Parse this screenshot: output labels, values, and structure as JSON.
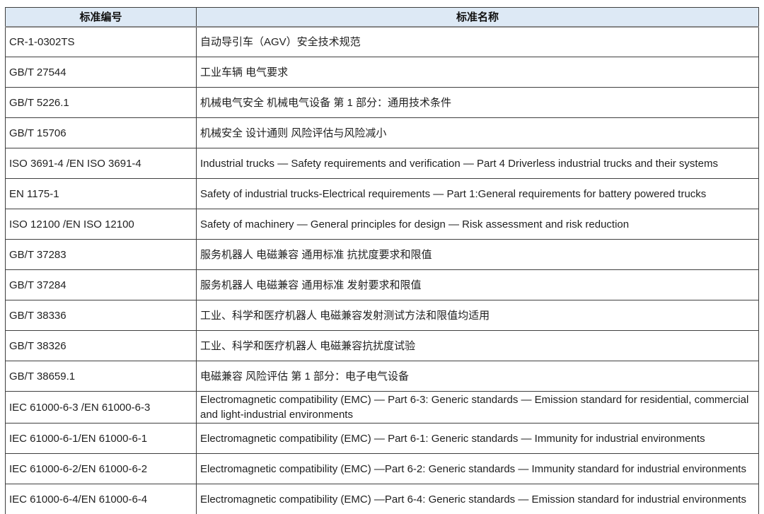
{
  "colors": {
    "header_background": "#dde9f5",
    "border": "#3f3f3f",
    "header_rule": "#848484",
    "text": "#1f1f1f",
    "page_background": "#ffffff"
  },
  "table": {
    "columns": [
      {
        "key": "code",
        "label": "标准编号"
      },
      {
        "key": "name",
        "label": "标准名称"
      }
    ],
    "rows": [
      {
        "code": "CR-1-0302TS",
        "name": "自动导引车（AGV）安全技术规范"
      },
      {
        "code": "GB/T 27544",
        "name": "工业车辆 电气要求"
      },
      {
        "code": "GB/T 5226.1",
        "name": "机械电气安全 机械电气设备 第 1 部分：通用技术条件"
      },
      {
        "code": "GB/T 15706",
        "name": "机械安全 设计通则 风险评估与风险减小"
      },
      {
        "code": "ISO 3691-4 /EN ISO 3691-4",
        "name": "Industrial trucks — Safety requirements and verification — Part 4 Driverless industrial trucks and their systems"
      },
      {
        "code": "EN 1175-1",
        "name": "Safety of industrial trucks-Electrical requirements — Part 1:General requirements for battery powered trucks"
      },
      {
        "code": "ISO 12100 /EN ISO 12100",
        "name": "Safety of machinery — General principles for design — Risk assessment and risk reduction"
      },
      {
        "code": "GB/T 37283",
        "name": "服务机器人 电磁兼容 通用标准 抗扰度要求和限值"
      },
      {
        "code": "GB/T 37284",
        "name": "服务机器人 电磁兼容 通用标准 发射要求和限值"
      },
      {
        "code": "GB/T 38336",
        "name": "工业、科学和医疗机器人 电磁兼容发射测试方法和限值均适用"
      },
      {
        "code": "GB/T 38326",
        "name": "工业、科学和医疗机器人 电磁兼容抗扰度试验"
      },
      {
        "code": "GB/T 38659.1",
        "name": "电磁兼容 风险评估 第 1 部分：电子电气设备"
      },
      {
        "code": "IEC 61000-6-3 /EN 61000-6-3",
        "name": "Electromagnetic compatibility (EMC) — Part 6-3: Generic standards — Emission standard for residential, commercial and light-industrial environments"
      },
      {
        "code": "IEC 61000-6-1/EN 61000-6-1",
        "name": "Electromagnetic compatibility (EMC) — Part 6-1: Generic standards — Immunity for industrial environments"
      },
      {
        "code": "IEC 61000-6-2/EN 61000-6-2",
        "name": "Electromagnetic compatibility (EMC) —Part 6-2: Generic standards — Immunity standard for industrial environments"
      },
      {
        "code": "IEC 61000-6-4/EN 61000-6-4",
        "name": "Electromagnetic compatibility (EMC) —Part 6-4: Generic standards — Emission standard for industrial environments"
      }
    ]
  }
}
